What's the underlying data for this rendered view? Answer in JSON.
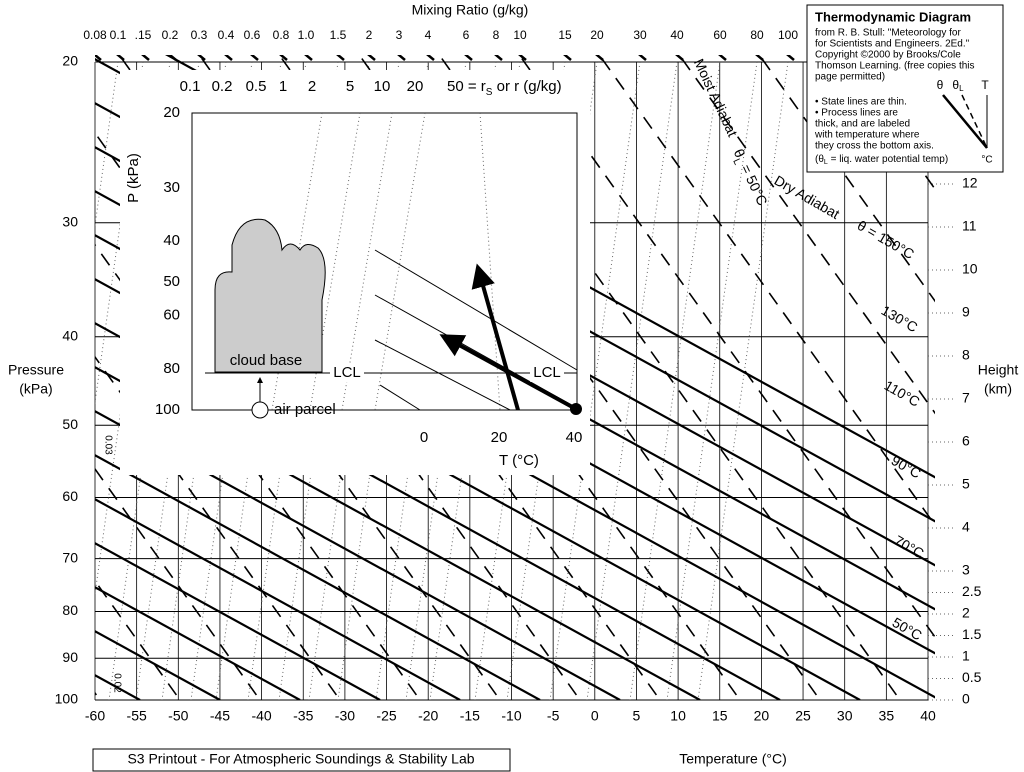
{
  "header": {
    "title": "Mixing Ratio  (g/kg)"
  },
  "mixing_ratio_labels": [
    "0.08",
    "0.1",
    ".15",
    "0.2",
    "0.3",
    "0.4",
    "0.6",
    "0.8",
    "1.0",
    "1.5",
    "2",
    "3",
    "4",
    "6",
    "8",
    "10",
    "15",
    "20",
    "30",
    "40",
    "60",
    "80",
    "100"
  ],
  "pressure_axis": {
    "title_lines": [
      "Pressure",
      "(kPa)"
    ],
    "ticks": [
      20,
      30,
      40,
      50,
      60,
      70,
      80,
      90,
      100
    ]
  },
  "temperature_axis": {
    "title": "Temperature  (°C)",
    "ticks": [
      -60,
      -55,
      -50,
      -45,
      -40,
      -35,
      -30,
      -25,
      -20,
      -15,
      -10,
      -5,
      0,
      5,
      10,
      15,
      20,
      25,
      30,
      35,
      40
    ]
  },
  "height_axis": {
    "title_lines": [
      "Height",
      "(km)"
    ],
    "ticks": [
      0,
      0.5,
      1,
      1.5,
      2,
      2.5,
      3,
      4,
      5,
      6,
      7,
      8,
      9,
      10,
      11,
      12
    ]
  },
  "left_labels": [
    "0.03",
    "0.02"
  ],
  "annotations": {
    "moist_adiabat": "Moist Adiabat",
    "theta_l_50": [
      "θ",
      "L",
      " = 50°C"
    ],
    "dry_adiabat": "Dry Adiabat",
    "theta_150": "θ = 150°C",
    "process_labels": [
      "130°C",
      "110°C",
      "90°C",
      "70°C",
      "50°C"
    ]
  },
  "info_box": {
    "title": "Thermodynamic Diagram",
    "lines": [
      "from R. B. Stull: \"Meteorology for",
      "for Scientists and Engineers. 2Ed.\"",
      "Copyright ©2000 by Brooks/Cole",
      "Thomson Learning. (free copies this",
      "page permitted)"
    ],
    "notes": [
      "• State lines are thin.",
      "• Process lines are",
      "thick, and are labeled",
      "with temperature where",
      "they cross the bottom axis."
    ],
    "theta_l_note": [
      "(θ",
      "L",
      " = liq. water potential temp)"
    ],
    "legend": {
      "theta": "θ",
      "theta_l": [
        "θ",
        "L"
      ],
      "t": "T",
      "unit": "°C"
    }
  },
  "inset": {
    "mixing_labels": [
      "0.1",
      "0.2",
      "0.5",
      "1",
      "2",
      "5",
      "10",
      "20"
    ],
    "mixing_last": [
      "50 = r",
      "S",
      " or  r (g/kg)"
    ],
    "p_title": "P (kPa)",
    "p_ticks": [
      20,
      30,
      40,
      50,
      60,
      80,
      100
    ],
    "t_title": "T (°C)",
    "t_ticks": [
      0,
      20,
      40
    ],
    "cloud_base": "cloud base",
    "lcl_left": "LCL",
    "lcl_right": "LCL",
    "air_parcel": "air parcel"
  },
  "footer": "S3 Printout - For Atmospheric Soundings & Stability Lab"
}
